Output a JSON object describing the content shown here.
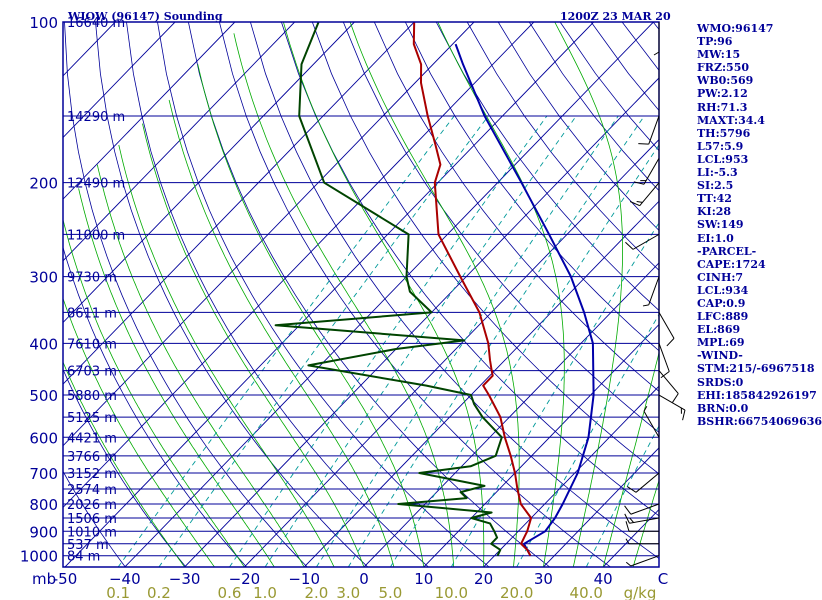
{
  "header": {
    "station": "WIOW (96147) Sounding",
    "time": "1200Z 23 MAR 20"
  },
  "indices": [
    "WMO:96147",
    "TP:96",
    "MW:15",
    "FRZ:550",
    "WB0:569",
    "PW:2.12",
    "RH:71.3",
    "MAXT:34.4",
    "TH:5796",
    "L57:5.9",
    "LCL:953",
    "LI:-5.3",
    "SI:2.5",
    "TT:42",
    "KI:28",
    "SW:149",
    "EI:1.0",
    "-PARCEL-",
    "CAPE:1724",
    "CINH:7",
    "LCL:934",
    "CAP:0.9",
    "LFC:889",
    "EL:869",
    "MPL:69",
    "-WIND-",
    "STM:215/-6967518",
    "SRDS:0",
    "EHI:185842926197",
    "BRN:0.0",
    "BSHR:66754069636"
  ],
  "colors": {
    "frame": "#000099",
    "isotherm": "#000099",
    "dry_adiabat": "#000099",
    "moist_adiabat": "#00aa00",
    "mixing_ratio": "#009999",
    "mixing_ratio_dash": "#999933",
    "temperature": "#aa0000",
    "dewpoint": "#004400",
    "parcel": "#0000aa",
    "wind": "#000000"
  },
  "chart_data": {
    "type": "line",
    "title": "WIOW (96147) Sounding",
    "pressure_unit_label": "mb",
    "pressure_ticks": [
      {
        "p": 100,
        "label": "100"
      },
      {
        "p": 200,
        "label": "200"
      },
      {
        "p": 300,
        "label": "300"
      },
      {
        "p": 400,
        "label": "400"
      },
      {
        "p": 500,
        "label": "500"
      },
      {
        "p": 600,
        "label": "600"
      },
      {
        "p": 700,
        "label": "700"
      },
      {
        "p": 800,
        "label": "800"
      },
      {
        "p": 900,
        "label": "900"
      },
      {
        "p": 1000,
        "label": "1000"
      }
    ],
    "height_lines": [
      {
        "p": 100,
        "label": "16640 m"
      },
      {
        "p": 150,
        "label": "14290 m"
      },
      {
        "p": 200,
        "label": "12490 m"
      },
      {
        "p": 250,
        "label": "11000 m"
      },
      {
        "p": 300,
        "label": "9730 m"
      },
      {
        "p": 350,
        "label": "8611 m"
      },
      {
        "p": 400,
        "label": "7610 m"
      },
      {
        "p": 450,
        "label": "6703 m"
      },
      {
        "p": 500,
        "label": "5880 m"
      },
      {
        "p": 550,
        "label": "5125 m"
      },
      {
        "p": 600,
        "label": "4421 m"
      },
      {
        "p": 650,
        "label": "3766 m"
      },
      {
        "p": 700,
        "label": "3152 m"
      },
      {
        "p": 750,
        "label": "2574 m"
      },
      {
        "p": 800,
        "label": "2026 m"
      },
      {
        "p": 850,
        "label": "1506 m"
      },
      {
        "p": 900,
        "label": "1010 m"
      },
      {
        "p": 950,
        "label": "537 m"
      },
      {
        "p": 1000,
        "label": "84 m"
      }
    ],
    "temperature_ticks": [
      {
        "t": -50,
        "label": "-50"
      },
      {
        "t": -40,
        "label": "−40"
      },
      {
        "t": -30,
        "label": "−30"
      },
      {
        "t": -20,
        "label": "−20"
      },
      {
        "t": -10,
        "label": "−10"
      },
      {
        "t": 0,
        "label": "0"
      },
      {
        "t": 10,
        "label": "10"
      },
      {
        "t": 20,
        "label": "20"
      },
      {
        "t": 30,
        "label": "30"
      },
      {
        "t": 40,
        "label": "40"
      },
      {
        "t": 50,
        "label": "C"
      }
    ],
    "mixing_ratio_ticks": [
      {
        "w": 0.1,
        "label": "0.1"
      },
      {
        "w": 0.2,
        "label": "0.2"
      },
      {
        "w": 0.6,
        "label": "0.6"
      },
      {
        "w": 1.0,
        "label": "1.0"
      },
      {
        "w": 2.0,
        "label": "2.0"
      },
      {
        "w": 3.0,
        "label": "3.0"
      },
      {
        "w": 5.0,
        "label": "5.0"
      },
      {
        "w": 10.0,
        "label": "10.0"
      },
      {
        "w": 20.0,
        "label": "20.0"
      },
      {
        "w": 40.0,
        "label": "40.0"
      }
    ],
    "mixing_ratio_unit": "g/kg",
    "temperature_c": [
      [
        1000,
        26.0
      ],
      [
        975,
        24.5
      ],
      [
        950,
        22.5
      ],
      [
        925,
        22.0
      ],
      [
        900,
        21.5
      ],
      [
        850,
        20.0
      ],
      [
        800,
        16.0
      ],
      [
        750,
        13.0
      ],
      [
        700,
        10.0
      ],
      [
        650,
        6.5
      ],
      [
        600,
        2.5
      ],
      [
        550,
        -1.5
      ],
      [
        500,
        -7.0
      ],
      [
        480,
        -9.5
      ],
      [
        460,
        -9.5
      ],
      [
        450,
        -10.5
      ],
      [
        430,
        -12.5
      ],
      [
        400,
        -15.5
      ],
      [
        350,
        -22.0
      ],
      [
        300,
        -31.0
      ],
      [
        250,
        -41.5
      ],
      [
        200,
        -50.5
      ],
      [
        185,
        -52.5
      ],
      [
        170,
        -56.5
      ],
      [
        150,
        -62.5
      ],
      [
        130,
        -69.0
      ],
      [
        120,
        -72.0
      ],
      [
        110,
        -76.5
      ],
      [
        100,
        -80.0
      ]
    ],
    "dewpoint_c": [
      [
        1000,
        20.5
      ],
      [
        975,
        20.0
      ],
      [
        950,
        17.5
      ],
      [
        925,
        17.5
      ],
      [
        900,
        16.0
      ],
      [
        870,
        14.0
      ],
      [
        850,
        10.0
      ],
      [
        830,
        12.5
      ],
      [
        800,
        -4.5
      ],
      [
        780,
        6.0
      ],
      [
        760,
        4.0
      ],
      [
        740,
        7.0
      ],
      [
        700,
        -6.0
      ],
      [
        680,
        1.5
      ],
      [
        650,
        4.0
      ],
      [
        600,
        2.0
      ],
      [
        550,
        -4.5
      ],
      [
        520,
        -8.0
      ],
      [
        500,
        -10.0
      ],
      [
        480,
        -19.0
      ],
      [
        440,
        -42.0
      ],
      [
        410,
        -30.0
      ],
      [
        395,
        -20.0
      ],
      [
        370,
        -54.0
      ],
      [
        350,
        -30.0
      ],
      [
        320,
        -37.0
      ],
      [
        300,
        -40.0
      ],
      [
        250,
        -46.5
      ],
      [
        200,
        -69.0
      ],
      [
        150,
        -84.0
      ],
      [
        120,
        -92.0
      ],
      [
        100,
        -96.0
      ]
    ],
    "parcel_c": [
      [
        1000,
        26.0
      ],
      [
        950,
        23.0
      ],
      [
        900,
        24.5
      ],
      [
        850,
        24.0
      ],
      [
        800,
        23.0
      ],
      [
        700,
        20.5
      ],
      [
        600,
        16.5
      ],
      [
        500,
        10.5
      ],
      [
        400,
        2.0
      ],
      [
        350,
        -4.5
      ],
      [
        300,
        -12.5
      ],
      [
        250,
        -23.0
      ],
      [
        200,
        -36.0
      ],
      [
        150,
        -53.0
      ],
      [
        120,
        -65.0
      ],
      [
        110,
        -69.5
      ]
    ],
    "wind_barbs": [
      {
        "p": 100,
        "dir": 180,
        "speed": 5
      },
      {
        "p": 150,
        "dir": 200,
        "speed": 10
      },
      {
        "p": 180,
        "dir": 210,
        "speed": 15
      },
      {
        "p": 200,
        "dir": 220,
        "speed": 15
      },
      {
        "p": 250,
        "dir": 240,
        "speed": 10
      },
      {
        "p": 300,
        "dir": 200,
        "speed": 5
      },
      {
        "p": 350,
        "dir": 150,
        "speed": 10
      },
      {
        "p": 400,
        "dir": 160,
        "speed": 10
      },
      {
        "p": 450,
        "dir": 140,
        "speed": 10
      },
      {
        "p": 500,
        "dir": 120,
        "speed": 15
      },
      {
        "p": 600,
        "dir": 330,
        "speed": 5
      },
      {
        "p": 700,
        "dir": 230,
        "speed": 10
      },
      {
        "p": 800,
        "dir": 250,
        "speed": 10
      },
      {
        "p": 850,
        "dir": 260,
        "speed": 15
      },
      {
        "p": 900,
        "dir": 270,
        "speed": 10
      },
      {
        "p": 950,
        "dir": 270,
        "speed": 5
      },
      {
        "p": 1000,
        "dir": 250,
        "speed": 5
      }
    ]
  }
}
